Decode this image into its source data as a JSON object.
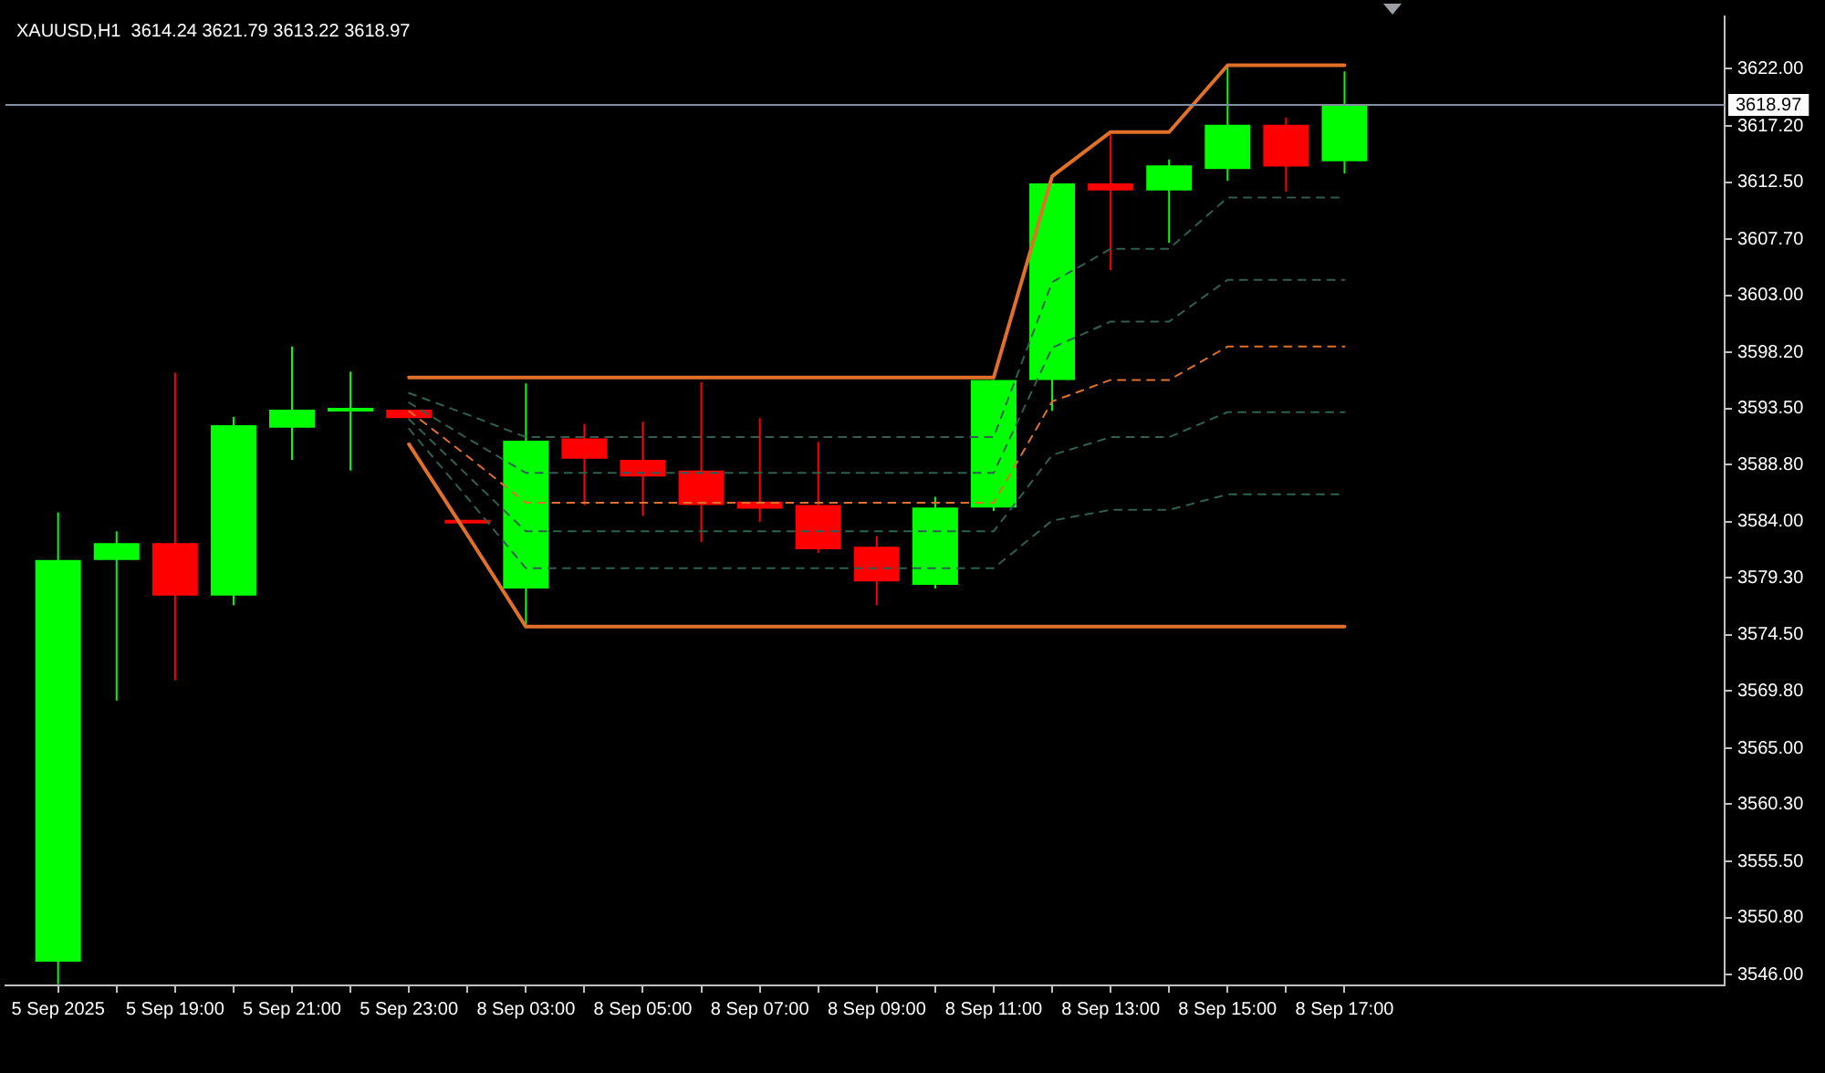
{
  "chart_data": {
    "type": "candlestick",
    "title": "XAUUSD,H1  3614.24 3621.79 3613.22 3618.97",
    "categories": [
      "5 Sep 2025",
      null,
      "5 Sep 19:00",
      null,
      "5 Sep 21:00",
      null,
      "5 Sep 23:00",
      null,
      "8 Sep 03:00",
      null,
      "8 Sep 05:00",
      null,
      "8 Sep 07:00",
      null,
      "8 Sep 09:00",
      null,
      "8 Sep 11:00",
      null,
      "8 Sep 13:00",
      null,
      "8 Sep 15:00",
      null,
      "8 Sep 17:00"
    ],
    "series": [
      {
        "type": "line",
        "color": "#e0702a",
        "values": [
          null,
          null,
          null,
          null,
          null,
          null,
          3596.1,
          3596.1,
          3596.1,
          3596.1,
          3596.1,
          3596.1,
          3596.1,
          3596.1,
          3596.1,
          3596.1,
          3596.1,
          3613.0,
          3616.7,
          3616.7,
          3622.3,
          3622.3,
          3622.3
        ]
      },
      {
        "type": "line",
        "color": "#e0702a",
        "values": [
          null,
          null,
          null,
          null,
          null,
          null,
          3590.5,
          3582.9,
          3575.2,
          3575.2,
          3575.2,
          3575.2,
          3575.2,
          3575.2,
          3575.2,
          3575.2,
          3575.2,
          3575.2,
          3575.2,
          3575.2,
          3575.2,
          3575.2,
          3575.2
        ]
      },
      {
        "type": "line",
        "color": "#2f5f50",
        "line_style": "dashed",
        "values": [
          null,
          null,
          null,
          null,
          null,
          null,
          3591.8,
          3586.0,
          3580.1,
          3580.1,
          3580.1,
          3580.1,
          3580.1,
          3580.1,
          3580.1,
          3580.1,
          3580.1,
          3584.1,
          3585.0,
          3585.0,
          3586.3,
          3586.3,
          3586.3
        ]
      },
      {
        "type": "line",
        "color": "#2f5f50",
        "line_style": "dashed",
        "values": [
          null,
          null,
          null,
          null,
          null,
          null,
          3592.6,
          3587.9,
          3583.2,
          3583.2,
          3583.2,
          3583.2,
          3583.2,
          3583.2,
          3583.2,
          3583.2,
          3583.2,
          3589.6,
          3591.1,
          3591.1,
          3593.2,
          3593.2,
          3593.2
        ]
      },
      {
        "type": "line",
        "color": "#e0702a",
        "line_style": "dashed",
        "values": [
          null,
          null,
          null,
          null,
          null,
          null,
          3593.3,
          3589.5,
          3585.6,
          3585.6,
          3585.6,
          3585.6,
          3585.6,
          3585.6,
          3585.6,
          3585.6,
          3585.6,
          3594.1,
          3595.9,
          3595.9,
          3598.7,
          3598.7,
          3598.7
        ]
      },
      {
        "type": "line",
        "color": "#2f5f50",
        "line_style": "dashed",
        "values": [
          null,
          null,
          null,
          null,
          null,
          null,
          3594.0,
          3591.0,
          3588.1,
          3588.1,
          3588.1,
          3588.1,
          3588.1,
          3588.1,
          3588.1,
          3588.1,
          3588.1,
          3598.6,
          3600.8,
          3600.8,
          3604.3,
          3604.3,
          3604.3
        ]
      },
      {
        "type": "line",
        "color": "#2f5f50",
        "line_style": "dashed",
        "values": [
          null,
          null,
          null,
          null,
          null,
          null,
          3594.8,
          3593.0,
          3591.1,
          3591.1,
          3591.1,
          3591.1,
          3591.1,
          3591.1,
          3591.1,
          3591.1,
          3591.1,
          3604.1,
          3606.9,
          3606.9,
          3611.2,
          3611.2,
          3611.2
        ]
      },
      {
        "ohlc": [
          [
            3547.1,
            3584.8,
            3545.2,
            3580.8
          ],
          [
            3580.8,
            3583.2,
            3569.0,
            3582.2
          ],
          [
            3582.2,
            3596.5,
            3570.7,
            3577.8
          ],
          [
            3577.8,
            3592.8,
            3577.0,
            3592.1
          ],
          [
            3591.9,
            3598.7,
            3589.2,
            3593.4
          ],
          [
            3593.2,
            3596.6,
            3588.3,
            3593.4
          ],
          [
            3593.4,
            3593.4,
            3592.7,
            3592.7
          ],
          [
            3584.0,
            3584.0,
            3584.0,
            3584.0
          ],
          [
            3578.4,
            3595.6,
            3575.2,
            3590.8
          ],
          [
            3591.0,
            3592.2,
            3585.4,
            3589.3
          ],
          [
            3589.2,
            3592.4,
            3584.5,
            3587.8
          ],
          [
            3588.3,
            3595.7,
            3582.3,
            3585.4
          ],
          [
            3585.7,
            3592.7,
            3584.0,
            3585.1
          ],
          [
            3585.4,
            3590.7,
            3581.4,
            3581.7
          ],
          [
            3581.9,
            3582.8,
            3577.0,
            3579.0
          ],
          [
            3578.7,
            3586.1,
            3578.4,
            3585.2
          ],
          [
            3585.2,
            3595.9,
            3584.9,
            3595.9
          ],
          [
            3595.9,
            3612.4,
            3593.3,
            3612.4
          ],
          [
            3612.4,
            3616.5,
            3605.1,
            3611.8
          ],
          [
            3611.8,
            3614.4,
            3607.4,
            3613.9
          ],
          [
            3613.6,
            3622.3,
            3612.6,
            3617.3
          ],
          [
            3617.3,
            3617.9,
            3611.7,
            3613.8
          ],
          [
            3614.24,
            3621.79,
            3613.22,
            3618.97
          ]
        ],
        "colors": [
          "#00ff00",
          "#00ff00",
          "#ff0000",
          "#00ff00",
          "#00ff00",
          "#00ff00",
          "#ff0000",
          "#ff0000",
          "#00ff00",
          "#ff0000",
          "#ff0000",
          "#ff0000",
          "#ff0000",
          "#ff0000",
          "#ff0000",
          "#00ff00",
          "#00ff00",
          "#00ff00",
          "#ff0000",
          "#00ff00",
          "#00ff00",
          "#ff0000",
          "#00ff00"
        ]
      }
    ],
    "ylim": [
      3545.1,
      3626.4
    ],
    "yticks": [
      {
        "value": 3622,
        "label": "3622.00"
      },
      {
        "value": 3617.2,
        "label": "3617.20"
      },
      {
        "value": 3612.5,
        "label": "3612.50"
      },
      {
        "value": 3607.7,
        "label": "3607.70"
      },
      {
        "value": 3603,
        "label": "3603.00"
      },
      {
        "value": 3598.2,
        "label": "3598.20"
      },
      {
        "value": 3593.5,
        "label": "3593.50"
      },
      {
        "value": 3588.8,
        "label": "3588.80"
      },
      {
        "value": 3584,
        "label": "3584.00"
      },
      {
        "value": 3579.3,
        "label": "3579.30"
      },
      {
        "value": 3574.5,
        "label": "3574.50"
      },
      {
        "value": 3569.8,
        "label": "3569.80"
      },
      {
        "value": 3565,
        "label": "3565.00"
      },
      {
        "value": 3560.3,
        "label": "3560.30"
      },
      {
        "value": 3555.5,
        "label": "3555.50"
      },
      {
        "value": 3550.8,
        "label": "3550.80"
      },
      {
        "value": 3546,
        "label": "3546.00"
      }
    ],
    "ref_lines": [
      {
        "axis": "y",
        "value": 3618.97,
        "label": "3618.97",
        "color": "#8090a0"
      }
    ],
    "marker": "none",
    "grid": false,
    "legend": false
  }
}
